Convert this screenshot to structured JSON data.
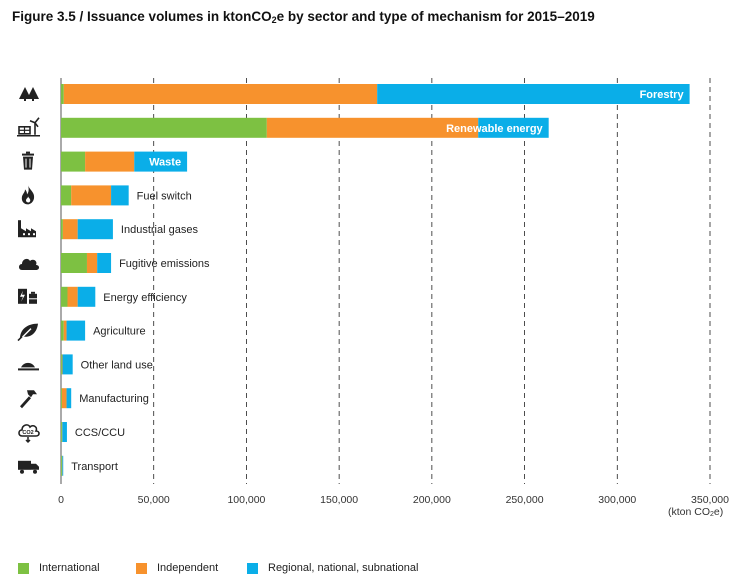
{
  "title": {
    "prefix": "Figure 3.5 / Issuance volumes in ktonCO",
    "subscript": "2",
    "suffix": "e by sector and type of mechanism for 2015–2019"
  },
  "unit_label": {
    "prefix": "(kton CO",
    "subscript": "2",
    "suffix": "e)"
  },
  "colors": {
    "International": "#7dc142",
    "Independent": "#f7922d",
    "Regional, national, subnational": "#0aaee8",
    "axis": "#555555",
    "grid": "#222222"
  },
  "chart_data": {
    "type": "bar",
    "orientation": "horizontal",
    "stacked": true,
    "title": "Figure 3.5 / Issuance volumes in ktonCO2e by sector and type of mechanism for 2015–2019",
    "xlabel": "(kton CO2e)",
    "ylabel": "",
    "xlim": [
      0,
      350000
    ],
    "xticks": [
      0,
      50000,
      100000,
      150000,
      200000,
      250000,
      300000,
      350000
    ],
    "xtick_labels": [
      "0",
      "50,000",
      "100,000",
      "150,000",
      "200,000",
      "250,000",
      "300,000",
      "350,000"
    ],
    "grid": "vertical dashed",
    "legend_position": "bottom",
    "categories": [
      "Forestry",
      "Renewable energy",
      "Waste",
      "Fuel switch",
      "Industrial gases",
      "Fugitive emissions",
      "Energy efficiency",
      "Agriculture",
      "Other land use",
      "Manufacturing",
      "CCS/CCU",
      "Transport"
    ],
    "category_icons": [
      "trees-icon",
      "wind-solar-icon",
      "trash-can-icon",
      "flame-icon",
      "factory-icon",
      "cloud-icon",
      "energy-battery-icon",
      "leaf-icon",
      "land-icon",
      "hammer-icon",
      "co2-cloud-icon",
      "truck-icon"
    ],
    "series": [
      {
        "name": "International",
        "values": [
          1500,
          111000,
          13000,
          5500,
          1000,
          14000,
          3500,
          1500,
          500,
          500,
          500,
          500
        ]
      },
      {
        "name": "Independent",
        "values": [
          169000,
          114000,
          26500,
          21500,
          8000,
          5500,
          5500,
          1500,
          300,
          2500,
          200,
          200
        ]
      },
      {
        "name": "Regional, national, subnational",
        "values": [
          168500,
          38000,
          28500,
          9500,
          19000,
          7500,
          9500,
          10000,
          5500,
          2500,
          2500,
          500
        ]
      }
    ],
    "inside_labels": [
      "Forestry",
      "Renewable energy",
      "Waste"
    ]
  }
}
